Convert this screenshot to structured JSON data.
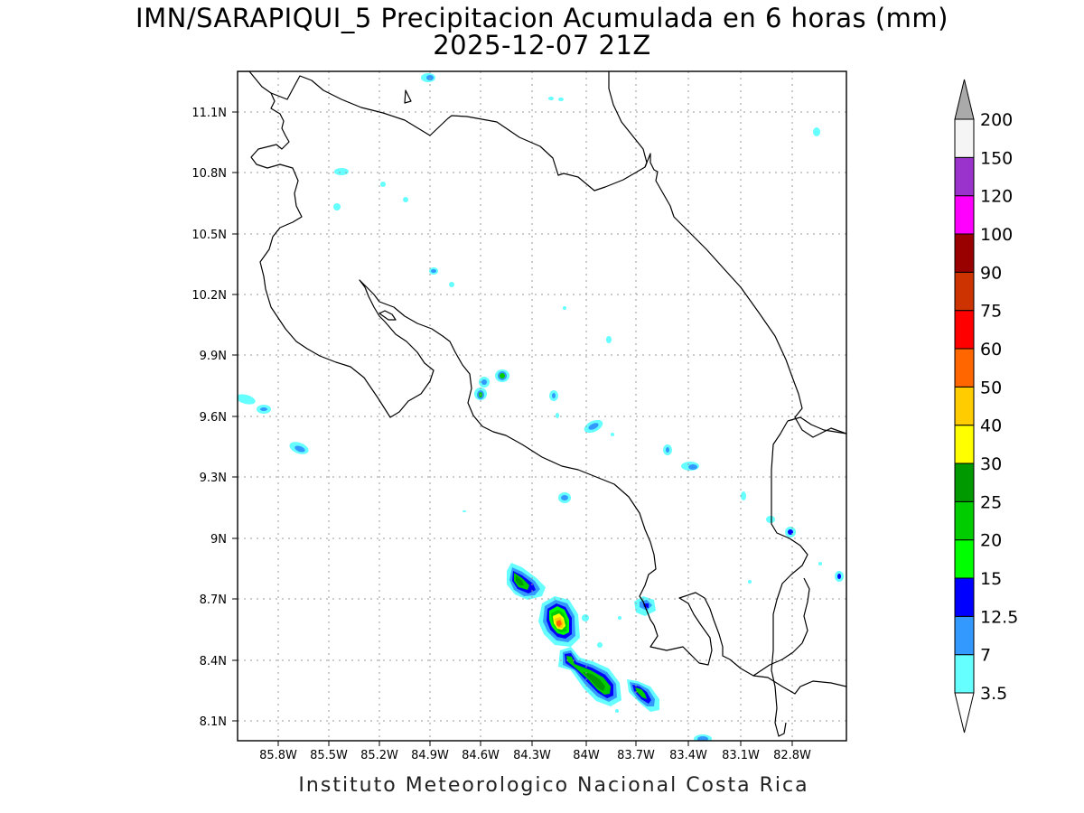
{
  "title": {
    "line1": "IMN/SARAPIQUI_5 Precipitacion Acumulada en 6 horas (mm)",
    "line2": "2025-12-07 21Z"
  },
  "footer": "Instituto Meteorologico Nacional Costa Rica",
  "map": {
    "lon_range": [
      -86.0,
      -82.5
    ],
    "lat_range": [
      8.0,
      11.3
    ],
    "lat_ticks": [
      "11.1N",
      "10.8N",
      "10.5N",
      "10.2N",
      "9.9N",
      "9.6N",
      "9.3N",
      "9N",
      "8.7N",
      "8.4N",
      "8.1N"
    ],
    "lon_ticks": [
      "85.8W",
      "85.5W",
      "85.2W",
      "84.9W",
      "84.6W",
      "84.3W",
      "84W",
      "83.7W",
      "83.4W",
      "83.1W",
      "82.8W"
    ],
    "grid": "dotted",
    "coastline_color": "#000000"
  },
  "colorbar": {
    "levels": [
      "3.5",
      "7",
      "12.5",
      "15",
      "20",
      "25",
      "30",
      "40",
      "50",
      "60",
      "75",
      "90",
      "100",
      "120",
      "150",
      "200"
    ],
    "colors": [
      "#66ffff",
      "#3399ff",
      "#0000ff",
      "#00ff00",
      "#00cc00",
      "#009900",
      "#ffff00",
      "#ffcc00",
      "#ff6600",
      "#ff0000",
      "#cc3300",
      "#990000",
      "#ff00ff",
      "#9933cc",
      "#f5f5f5",
      "#aaaaaa"
    ],
    "lower_end": "#ffffff",
    "upper_end": "#aaaaaa"
  }
}
